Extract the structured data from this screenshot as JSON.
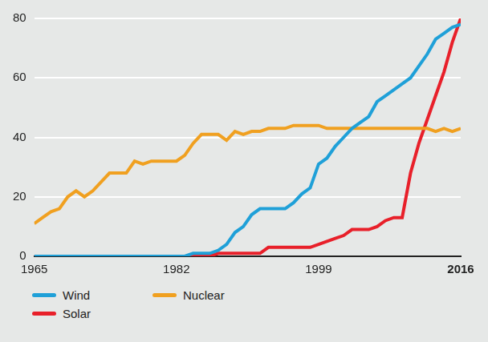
{
  "chart_data": {
    "type": "line",
    "x": [
      1965,
      1966,
      1967,
      1968,
      1969,
      1970,
      1971,
      1972,
      1973,
      1974,
      1975,
      1976,
      1977,
      1978,
      1979,
      1980,
      1981,
      1982,
      1983,
      1984,
      1985,
      1986,
      1987,
      1988,
      1989,
      1990,
      1991,
      1992,
      1993,
      1994,
      1995,
      1996,
      1997,
      1998,
      1999,
      2000,
      2001,
      2002,
      2003,
      2004,
      2005,
      2006,
      2007,
      2008,
      2009,
      2010,
      2011,
      2012,
      2013,
      2014,
      2015,
      2016
    ],
    "series": [
      {
        "name": "Wind",
        "color": "#1fa0d8",
        "values": [
          0,
          0,
          0,
          0,
          0,
          0,
          0,
          0,
          0,
          0,
          0,
          0,
          0,
          0,
          0,
          0,
          0,
          0,
          0,
          1,
          1,
          1,
          2,
          4,
          8,
          10,
          14,
          16,
          16,
          16,
          16,
          18,
          21,
          23,
          31,
          33,
          37,
          40,
          43,
          45,
          47,
          52,
          54,
          56,
          58,
          60,
          64,
          68,
          73,
          75,
          77,
          78
        ]
      },
      {
        "name": "Nuclear",
        "color": "#f0a020",
        "values": [
          11,
          13,
          15,
          16,
          20,
          22,
          20,
          22,
          25,
          28,
          28,
          28,
          32,
          31,
          32,
          32,
          32,
          32,
          34,
          38,
          41,
          41,
          41,
          39,
          42,
          41,
          42,
          42,
          43,
          43,
          43,
          44,
          44,
          44,
          44,
          43,
          43,
          43,
          43,
          43,
          43,
          43,
          43,
          43,
          43,
          43,
          43,
          43,
          42,
          43,
          42,
          43
        ]
      },
      {
        "name": "Solar",
        "color": "#e8202a",
        "values": [
          0,
          0,
          0,
          0,
          0,
          0,
          0,
          0,
          0,
          0,
          0,
          0,
          0,
          0,
          0,
          0,
          0,
          0,
          0,
          0,
          0,
          0,
          1,
          1,
          1,
          1,
          1,
          1,
          3,
          3,
          3,
          3,
          3,
          3,
          4,
          5,
          6,
          7,
          9,
          9,
          9,
          10,
          12,
          13,
          13,
          28,
          38,
          46,
          54,
          62,
          72,
          80
        ]
      }
    ],
    "xlim": [
      1965,
      2016
    ],
    "xticks": [
      1965,
      1982,
      1999,
      2016
    ],
    "ylim": [
      0,
      80
    ],
    "yticks": [
      0,
      20,
      40,
      60,
      80
    ],
    "grid": true,
    "legend": "bottom"
  }
}
